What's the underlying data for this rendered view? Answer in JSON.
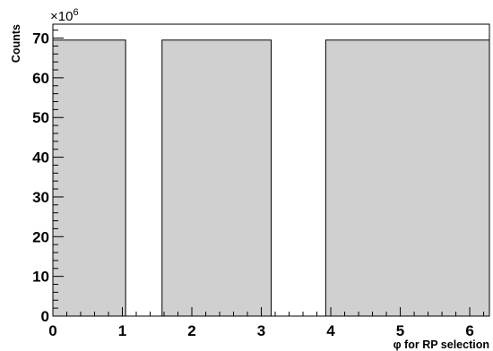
{
  "chart_data": {
    "type": "bar",
    "histogram": true,
    "xlabel": "φ for RP selection",
    "ylabel": "Counts",
    "y_exponent_base": "×10",
    "y_exponent_power": "6",
    "xlim": [
      0,
      6.2832
    ],
    "ylim": [
      0,
      73.5
    ],
    "x_ticks": [
      0,
      1,
      2,
      3,
      4,
      5,
      6
    ],
    "y_ticks": [
      0,
      10,
      20,
      30,
      40,
      50,
      60,
      70
    ],
    "bins": [
      {
        "x_start": 0.0,
        "x_end": 1.047,
        "value": 69.5
      },
      {
        "x_start": 1.047,
        "x_end": 1.571,
        "value": 0
      },
      {
        "x_start": 1.571,
        "x_end": 3.142,
        "value": 69.5
      },
      {
        "x_start": 3.142,
        "x_end": 3.927,
        "value": 0
      },
      {
        "x_start": 3.927,
        "x_end": 6.2832,
        "value": 69.5
      }
    ],
    "fill_color": "#d0d0d0",
    "line_color": "#000000"
  }
}
